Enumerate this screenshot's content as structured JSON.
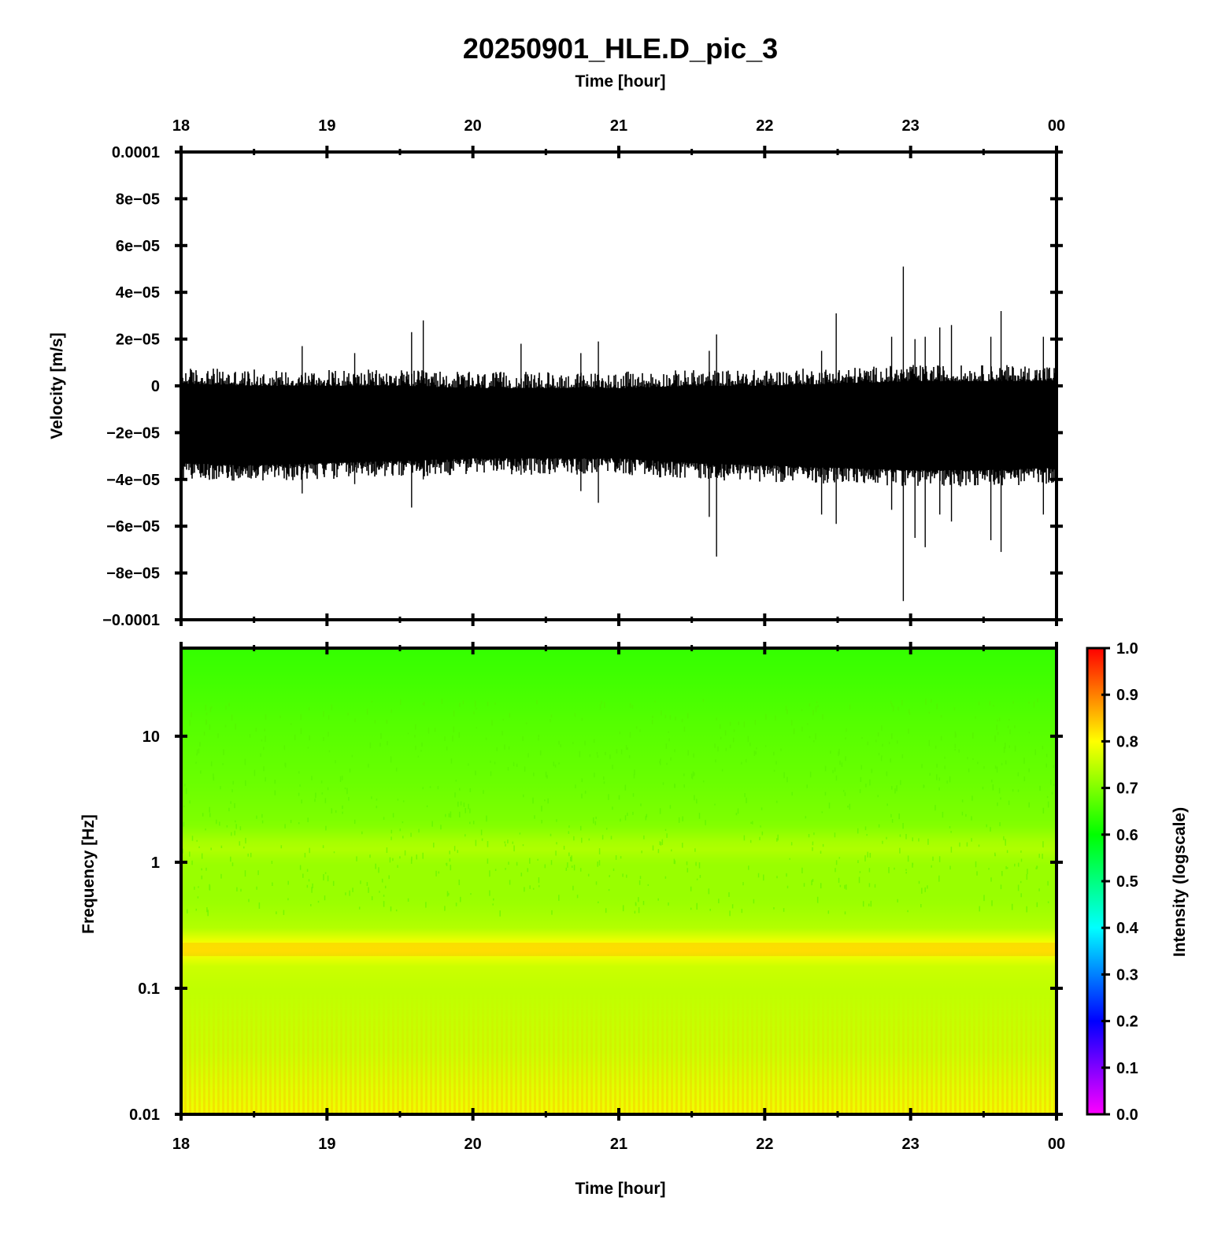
{
  "chart_data": [
    {
      "type": "line",
      "panel": "waveform",
      "title": "20250901_HLE.D_pic_3",
      "top_xlabel": "Time [hour]",
      "ylabel": "Velocity [m/s]",
      "x_ticks": [
        "18",
        "19",
        "20",
        "21",
        "22",
        "23",
        "00"
      ],
      "y_ticks": [
        "0.0001",
        "8e−05",
        "6e−05",
        "4e−05",
        "2e−05",
        "0",
        "−2e−05",
        "−4e−05",
        "−6e−05",
        "−8e−05",
        "−0.0001"
      ],
      "xlim_hours": [
        18,
        24
      ],
      "ylim": [
        -0.0001,
        0.0001
      ],
      "trace_color": "#000000",
      "envelope": {
        "hours": [
          18.0,
          18.5,
          19.0,
          19.5,
          20.0,
          20.5,
          21.0,
          21.5,
          22.0,
          22.5,
          23.0,
          23.5,
          24.0
        ],
        "upper": [
          4e-06,
          3e-06,
          3e-06,
          3e-06,
          2e-06,
          2e-06,
          2e-06,
          3e-06,
          3e-06,
          4e-06,
          5e-06,
          5e-06,
          5e-06
        ],
        "lower": [
          -3.6e-05,
          -3.7e-05,
          -3.6e-05,
          -3.5e-05,
          -3.4e-05,
          -3.4e-05,
          -3.4e-05,
          -3.6e-05,
          -3.7e-05,
          -3.8e-05,
          -3.9e-05,
          -3.9e-05,
          -3.8e-05
        ]
      },
      "spikes": [
        {
          "hour": 18.83,
          "max": 1.7e-05,
          "min": -4.6e-05
        },
        {
          "hour": 19.19,
          "max": 1.4e-05,
          "min": -4.2e-05
        },
        {
          "hour": 19.58,
          "max": 2.3e-05,
          "min": -5.2e-05
        },
        {
          "hour": 19.66,
          "max": 2.8e-05,
          "min": -4e-05
        },
        {
          "hour": 20.33,
          "max": 1.8e-05,
          "min": -3.8e-05
        },
        {
          "hour": 20.74,
          "max": 1.4e-05,
          "min": -4.5e-05
        },
        {
          "hour": 20.86,
          "max": 1.9e-05,
          "min": -5e-05
        },
        {
          "hour": 21.62,
          "max": 1.5e-05,
          "min": -5.6e-05
        },
        {
          "hour": 21.67,
          "max": 2.2e-05,
          "min": -7.3e-05
        },
        {
          "hour": 22.39,
          "max": 1.5e-05,
          "min": -5.5e-05
        },
        {
          "hour": 22.49,
          "max": 3.1e-05,
          "min": -5.9e-05
        },
        {
          "hour": 22.87,
          "max": 2.1e-05,
          "min": -5.3e-05
        },
        {
          "hour": 22.95,
          "max": 5.1e-05,
          "min": -9.2e-05
        },
        {
          "hour": 23.03,
          "max": 2e-05,
          "min": -6.5e-05
        },
        {
          "hour": 23.1,
          "max": 2.1e-05,
          "min": -6.9e-05
        },
        {
          "hour": 23.2,
          "max": 2.5e-05,
          "min": -5.5e-05
        },
        {
          "hour": 23.28,
          "max": 2.6e-05,
          "min": -5.8e-05
        },
        {
          "hour": 23.55,
          "max": 2.1e-05,
          "min": -6.6e-05
        },
        {
          "hour": 23.62,
          "max": 3.2e-05,
          "min": -7.1e-05
        },
        {
          "hour": 23.91,
          "max": 2.1e-05,
          "min": -5.5e-05
        }
      ]
    },
    {
      "type": "heatmap",
      "panel": "spectrogram",
      "xlabel": "Time [hour]",
      "ylabel": "Frequency [Hz]",
      "x_ticks": [
        "18",
        "19",
        "20",
        "21",
        "22",
        "23",
        "00"
      ],
      "y_ticks": [
        "10",
        "1",
        "0.1",
        "0.01"
      ],
      "ylim_hz": [
        0.01,
        50
      ],
      "log_y": true,
      "colorbar": {
        "label": "Intensity (logscale)",
        "ticks": [
          "1.0",
          "0.9",
          "0.8",
          "0.7",
          "0.6",
          "0.5",
          "0.4",
          "0.3",
          "0.2",
          "0.1",
          "0.0"
        ],
        "colors": [
          "#ff00ff",
          "#8000ff",
          "#0000ff",
          "#0080ff",
          "#00ffff",
          "#00ff80",
          "#00ff00",
          "#80ff00",
          "#ffff00",
          "#ff8000",
          "#ff0000"
        ]
      },
      "intensity_profile": {
        "freq_hz": [
          0.01,
          0.03,
          0.1,
          0.15,
          0.21,
          0.3,
          0.5,
          1.0,
          1.3,
          2.0,
          5.0,
          10.0,
          50.0
        ],
        "intensity": [
          0.79,
          0.76,
          0.75,
          0.76,
          0.81,
          0.74,
          0.72,
          0.72,
          0.74,
          0.7,
          0.68,
          0.67,
          0.64
        ]
      }
    }
  ]
}
